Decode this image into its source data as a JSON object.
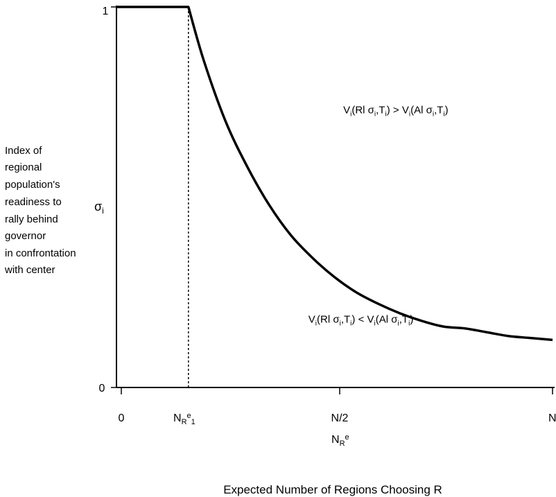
{
  "chart_data": {
    "type": "line",
    "ylabel_lines": [
      "Index of",
      "regional",
      "population's",
      "readiness to",
      "rally behind",
      "governor",
      "in confrontation",
      "with center"
    ],
    "y_symbol": "σ",
    "y_symbol_sub": "i",
    "y_ticks": [
      "1",
      "0"
    ],
    "x_ticks": [
      {
        "main": "0",
        "sub": "",
        "sup": "",
        "sub2": ""
      },
      {
        "main": "N",
        "sub": "R",
        "sup": "e",
        "sub2": "1"
      },
      {
        "main": "N/2",
        "sub": "",
        "sup": "",
        "sub2": ""
      },
      {
        "main": "N",
        "sub": "",
        "sup": "",
        "sub2": ""
      }
    ],
    "x_symbol": {
      "main": "N",
      "sub": "R",
      "sup": "e"
    },
    "xlabel": "Expected Number of Regions Choosing R",
    "xlim": [
      0,
      1
    ],
    "ylim": [
      0,
      1
    ],
    "threshold_x": 0.165,
    "series": [
      {
        "x": [
          0,
          0.165,
          0.2,
          0.25,
          0.3,
          0.35,
          0.4,
          0.45,
          0.5,
          0.55,
          0.6,
          0.65,
          0.7,
          0.75,
          0.8,
          0.85,
          0.9,
          0.95,
          1.0
        ],
        "y": [
          1,
          1,
          0.86,
          0.7,
          0.58,
          0.48,
          0.4,
          0.34,
          0.29,
          0.25,
          0.22,
          0.195,
          0.175,
          0.16,
          0.155,
          0.145,
          0.135,
          0.13,
          0.125
        ]
      }
    ],
    "annotations": [
      {
        "id": "upper",
        "parts": [
          "V",
          "i",
          "(Rl σ",
          "i",
          ",T",
          "i",
          ") > V",
          "i",
          "(Al σ",
          "i",
          ",T",
          "i",
          ")"
        ],
        "x": 0.52,
        "y": 0.72
      },
      {
        "id": "lower",
        "parts": [
          "V",
          "i",
          "(Rl σ",
          "i",
          ",T",
          "i",
          ") < V",
          "i",
          "(Al σ",
          "i",
          ",T",
          "i",
          ")"
        ],
        "x": 0.44,
        "y": 0.17
      }
    ]
  }
}
